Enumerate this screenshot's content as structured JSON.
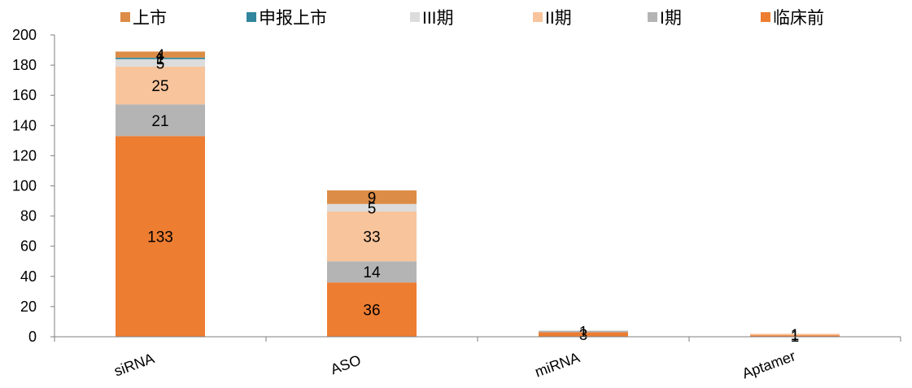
{
  "chart_data": {
    "type": "bar",
    "stacked": true,
    "categories": [
      "siRNA",
      "ASO",
      "miRNA",
      "Aptamer"
    ],
    "series": [
      {
        "name": "临床前",
        "color": "#ED7D31",
        "values": [
          133,
          36,
          3,
          1
        ]
      },
      {
        "name": "I期",
        "color": "#B4B4B4",
        "values": [
          21,
          14,
          1,
          0
        ]
      },
      {
        "name": "II期",
        "color": "#F8C49C",
        "values": [
          25,
          33,
          0,
          1
        ]
      },
      {
        "name": "III期",
        "color": "#DCDCDC",
        "values": [
          5,
          5,
          0,
          0
        ]
      },
      {
        "name": "申报上市",
        "color": "#31859C",
        "values": [
          1,
          0,
          0,
          0
        ]
      },
      {
        "name": "上市",
        "color": "#DC8C46",
        "values": [
          4,
          9,
          0,
          0
        ]
      }
    ],
    "legend_order": [
      "上市",
      "申报上市",
      "III期",
      "II期",
      "I期",
      "临床前"
    ],
    "ylim": [
      0,
      200
    ],
    "yticks": [
      0,
      20,
      40,
      60,
      80,
      100,
      120,
      140,
      160,
      180,
      200
    ],
    "grid": false,
    "legend": "top",
    "title": "",
    "xlabel": "",
    "ylabel": ""
  }
}
